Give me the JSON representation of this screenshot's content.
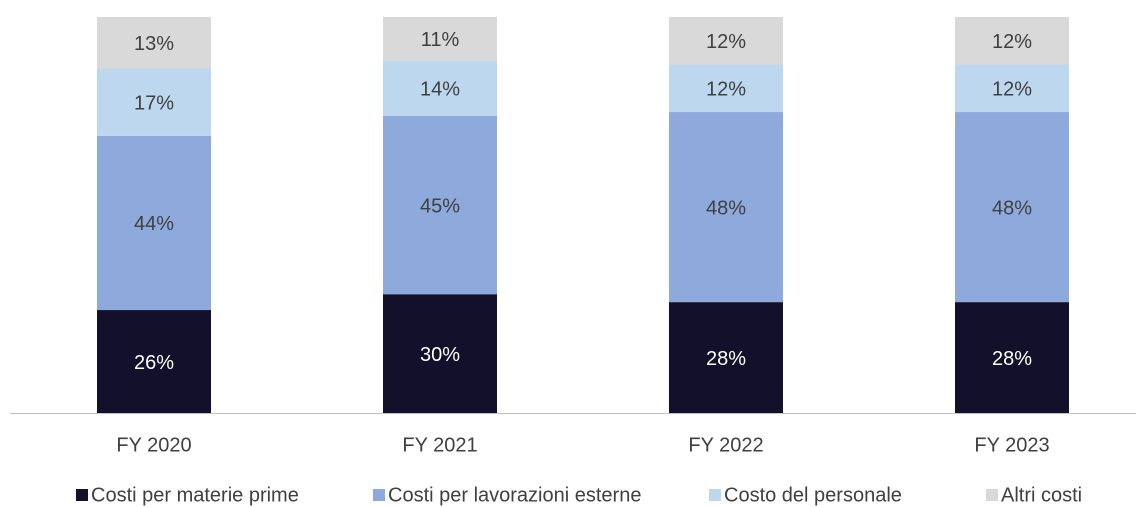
{
  "chart_data": {
    "type": "stacked_bar",
    "categories": [
      "FY 2020",
      "FY 2021",
      "FY 2022",
      "FY 2023"
    ],
    "series": [
      {
        "name": "Costi per materie prime",
        "color": "#12102a",
        "values": [
          26,
          30,
          28,
          28
        ],
        "value_labels": [
          "26%",
          "30%",
          "28%",
          "28%"
        ]
      },
      {
        "name": "Costi per lavorazioni esterne",
        "color": "#8eaadc",
        "values": [
          44,
          45,
          48,
          48
        ],
        "value_labels": [
          "44%",
          "45%",
          "48%",
          "48%"
        ]
      },
      {
        "name": "Costo del personale",
        "color": "#bdd7ee",
        "values": [
          17,
          14,
          12,
          12
        ],
        "value_labels": [
          "17%",
          "14%",
          "12%",
          "12%"
        ]
      },
      {
        "name": "Altri costi",
        "color": "#d9d9d9",
        "values": [
          13,
          11,
          12,
          12
        ],
        "value_labels": [
          "13%",
          "11%",
          "12%",
          "12%"
        ]
      }
    ],
    "ylim": [
      0,
      100
    ],
    "legend": "bottom"
  }
}
